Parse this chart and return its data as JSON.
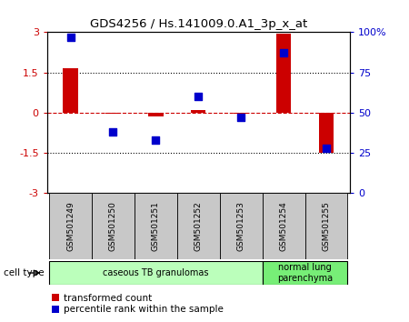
{
  "title": "GDS4256 / Hs.141009.0.A1_3p_x_at",
  "samples": [
    "GSM501249",
    "GSM501250",
    "GSM501251",
    "GSM501252",
    "GSM501253",
    "GSM501254",
    "GSM501255"
  ],
  "transformed_count": [
    1.65,
    -0.05,
    -0.15,
    0.1,
    -0.05,
    2.95,
    -1.5
  ],
  "percentile_rank": [
    97,
    38,
    33,
    60,
    47,
    87,
    28
  ],
  "ylim_left": [
    -3,
    3
  ],
  "ylim_right": [
    0,
    100
  ],
  "yticks_left": [
    -3,
    -1.5,
    0,
    1.5,
    3
  ],
  "yticks_right": [
    0,
    25,
    50,
    75,
    100
  ],
  "ytick_labels_left": [
    "-3",
    "-1.5",
    "0",
    "1.5",
    "3"
  ],
  "ytick_labels_right": [
    "0",
    "25",
    "50",
    "75",
    "100%"
  ],
  "hlines": [
    1.5,
    -1.5
  ],
  "bar_color": "#cc0000",
  "scatter_color": "#0000cc",
  "cell_types": [
    {
      "label": "caseous TB granulomas",
      "start": 0,
      "end": 5,
      "color": "#bbffbb"
    },
    {
      "label": "normal lung\nparenchyma",
      "start": 5,
      "end": 7,
      "color": "#77ee77"
    }
  ],
  "cell_type_label": "cell type",
  "legend_red": "transformed count",
  "legend_blue": "percentile rank within the sample",
  "sample_bg_color": "#c8c8c8",
  "bar_width": 0.35,
  "scatter_size": 35
}
